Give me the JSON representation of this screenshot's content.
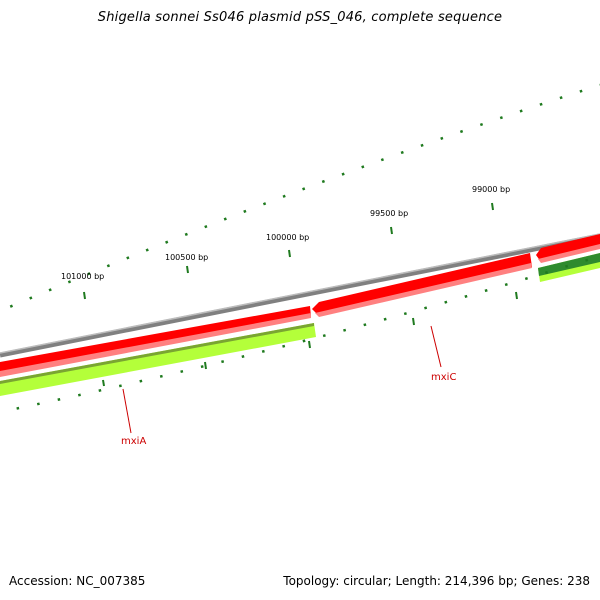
{
  "title": "Shigella sonnei Ss046 plasmid pSS_046, complete sequence",
  "footer": {
    "accession": "Accession: NC_007385",
    "summary": "Topology: circular; Length: 214,396 bp; Genes: 238"
  },
  "colors": {
    "backbone": "#808080",
    "backbone_highlight": "#bcbcbc",
    "gene_forward": "#ff0000",
    "gene_forward_light": "#ff8080",
    "gene_reverse": "#b4ff3a",
    "gene_reverse_dark": "#7aa532",
    "gene_reverse_green": "#2e8b2e",
    "tick": "#1f7a1f",
    "label": "#cc0000"
  },
  "position_labels": [
    {
      "text": "101000 bp",
      "bp": 101000
    },
    {
      "text": "100500 bp",
      "bp": 100500
    },
    {
      "text": "100000 bp",
      "bp": 100000
    },
    {
      "text": "99500 bp",
      "bp": 99500
    },
    {
      "text": "99000 bp",
      "bp": 99000
    }
  ],
  "genes": [
    {
      "name": "mxiA",
      "strand": "reverse"
    },
    {
      "name": "mxiC",
      "strand": "forward"
    }
  ]
}
